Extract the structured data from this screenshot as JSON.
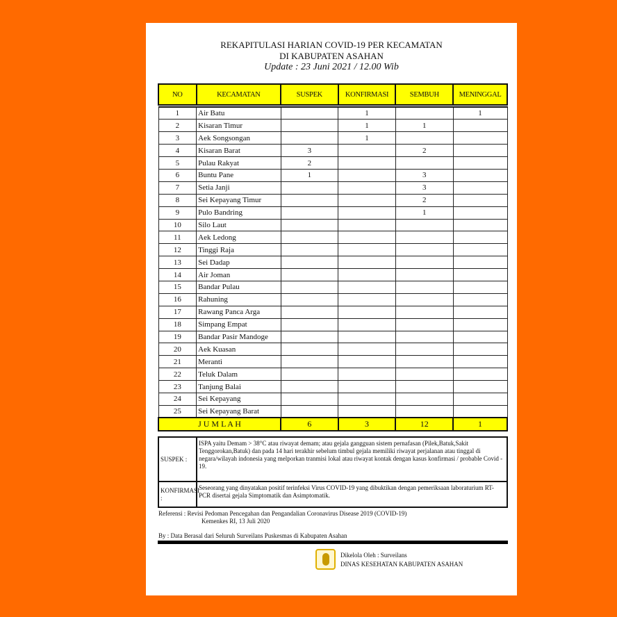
{
  "header": {
    "title1": "REKAPITULASI HARIAN COVID-19 PER KECAMATAN",
    "title2": "DI KABUPATEN ASAHAN",
    "update": "Update : 23 Juni 2021 / 12.00 Wib"
  },
  "columns": [
    "NO",
    "KECAMATAN",
    "SUSPEK",
    "KONFIRMASI",
    "SEMBUH",
    "MENINGGAL"
  ],
  "rows": [
    [
      "1",
      "Air Batu",
      "",
      "1",
      "",
      "1"
    ],
    [
      "2",
      "Kisaran Timur",
      "",
      "1",
      "1",
      ""
    ],
    [
      "3",
      "Aek Songsongan",
      "",
      "1",
      "",
      ""
    ],
    [
      "4",
      "Kisaran Barat",
      "3",
      "",
      "2",
      ""
    ],
    [
      "5",
      "Pulau Rakyat",
      "2",
      "",
      "",
      ""
    ],
    [
      "6",
      "Buntu Pane",
      "1",
      "",
      "3",
      ""
    ],
    [
      "7",
      "Setia Janji",
      "",
      "",
      "3",
      ""
    ],
    [
      "8",
      "Sei Kepayang Timur",
      "",
      "",
      "2",
      ""
    ],
    [
      "9",
      "Pulo Bandring",
      "",
      "",
      "1",
      ""
    ],
    [
      "10",
      "Silo Laut",
      "",
      "",
      "",
      ""
    ],
    [
      "11",
      "Aek Ledong",
      "",
      "",
      "",
      ""
    ],
    [
      "12",
      "Tinggi Raja",
      "",
      "",
      "",
      ""
    ],
    [
      "13",
      "Sei Dadap",
      "",
      "",
      "",
      ""
    ],
    [
      "14",
      "Air Joman",
      "",
      "",
      "",
      ""
    ],
    [
      "15",
      "Bandar Pulau",
      "",
      "",
      "",
      ""
    ],
    [
      "16",
      "Rahuning",
      "",
      "",
      "",
      ""
    ],
    [
      "17",
      "Rawang Panca Arga",
      "",
      "",
      "",
      ""
    ],
    [
      "18",
      "Simpang Empat",
      "",
      "",
      "",
      ""
    ],
    [
      "19",
      "Bandar Pasir Mandoge",
      "",
      "",
      "",
      ""
    ],
    [
      "20",
      "Aek Kuasan",
      "",
      "",
      "",
      ""
    ],
    [
      "21",
      "Meranti",
      "",
      "",
      "",
      ""
    ],
    [
      "22",
      "Teluk Dalam",
      "",
      "",
      "",
      ""
    ],
    [
      "23",
      "Tanjung Balai",
      "",
      "",
      "",
      ""
    ],
    [
      "24",
      "Sei Kepayang",
      "",
      "",
      "",
      ""
    ],
    [
      "25",
      "Sei Kepayang Barat",
      "",
      "",
      "",
      ""
    ]
  ],
  "total": {
    "label": "J U M L A H",
    "suspek": "6",
    "konfirmasi": "3",
    "sembuh": "12",
    "meninggal": "1"
  },
  "notes": {
    "suspek_label": "SUSPEK :",
    "suspek_text": "ISPA yaitu Demam > 38°C atau riwayat demam;  atau gejala gangguan sistem pernafasan (Pilek,Batuk,Sakit Tenggorokan,Batuk) dan pada 14 hari terakhir sebelum timbul gejala memiliki riwayat perjalanan atau tinggal di negara/wilayah indonesia yang melporkan tranmisi lokal atau riwayat kontak dengan kasus konfirmasi / probable Covid - 19.",
    "konfirmasi_label": "KONFIRMASI :",
    "konfirmasi_text": "Seseorang yang dinyatakan positif terinfeksi Virus COVID-19 yang dibuktikan dengan pemeriksaan laboraturium RT-PCR disertai gejala Simptomatik dan Asimptomatik."
  },
  "reference": {
    "line1": "Referensi  :  Revisi Pedoman Pencegahan dan Pengandalian Coronavirus Disease 2019 (COVID-19)",
    "line2": "Kemenkes RI, 13 Juli 2020"
  },
  "source": "By : Data Berasal dari Seluruh Surveilans Puskesmas di Kabupaten Asahan",
  "manager": {
    "line1": "Dikelola Oleh : Surveilans",
    "line2": "DINAS KESEHATAN KABUPATEN ASAHAN"
  },
  "colors": {
    "background": "#ff6a00",
    "header_fill": "#ffff00"
  }
}
